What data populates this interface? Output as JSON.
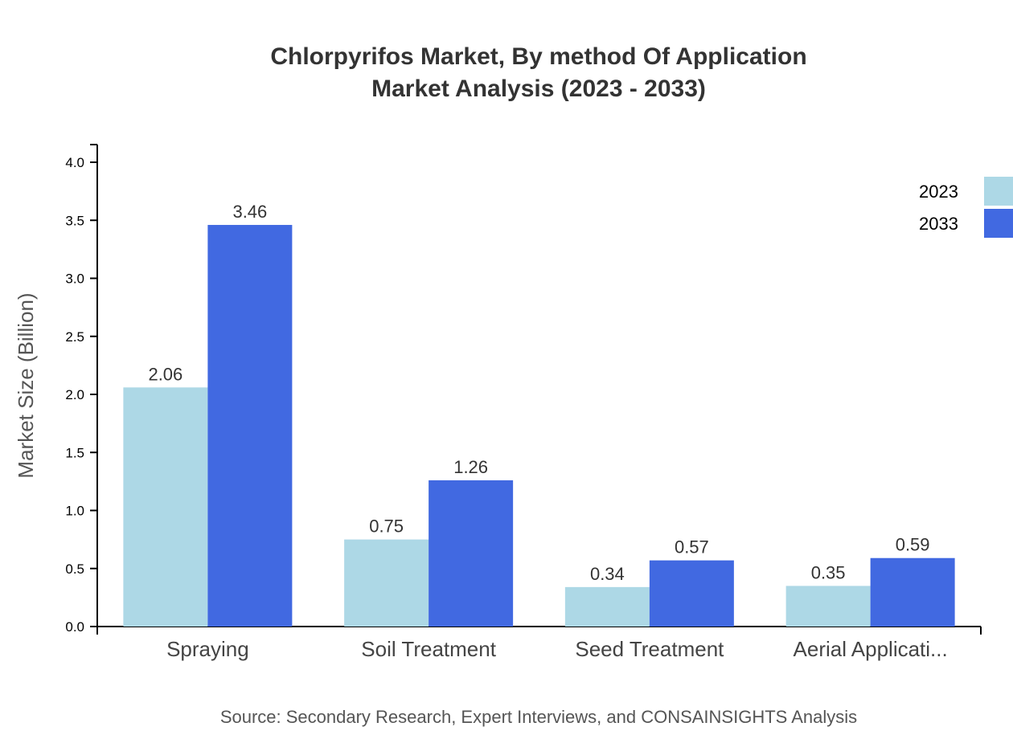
{
  "chart_data": {
    "type": "bar",
    "title": "Chlorpyrifos Market, By method Of Application",
    "subtitle": "Market Analysis (2023 - 2033)",
    "xlabel": "",
    "ylabel": "Market Size (Billion)",
    "categories": [
      "Spraying",
      "Soil Treatment",
      "Seed Treatment",
      "Aerial Applicati..."
    ],
    "series": [
      {
        "name": "2023",
        "values": [
          2.06,
          0.75,
          0.34,
          0.35
        ],
        "color": "#add8e6"
      },
      {
        "name": "2033",
        "values": [
          3.46,
          1.26,
          0.57,
          0.59
        ],
        "color": "#4169e1"
      }
    ],
    "ylim": [
      0,
      4.0
    ],
    "yticks": [
      "0.0",
      "0.5",
      "1.0",
      "1.5",
      "2.0",
      "2.5",
      "3.0",
      "3.5",
      "4.0"
    ],
    "grid": false,
    "legend_position": "top-right",
    "source": "Source: Secondary Research, Expert Interviews, and CONSAINSIGHTS Analysis"
  }
}
